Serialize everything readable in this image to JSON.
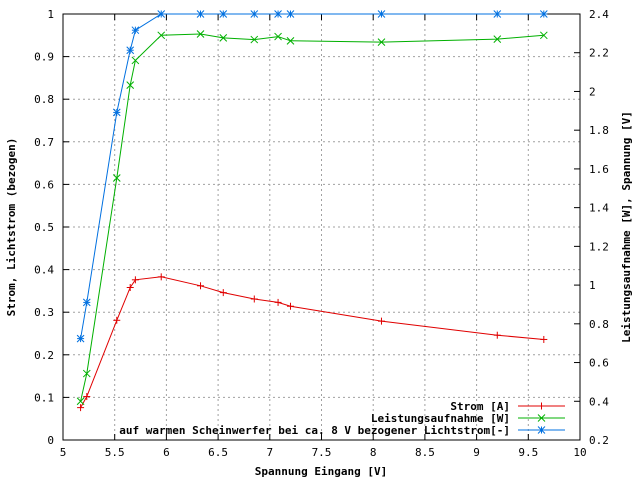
{
  "chart_data": {
    "type": "line",
    "xlabel": "Spannung Eingang [V]",
    "ylabel": "Strom, Lichtstrom (bezogen)",
    "y2label": "Leistungsaufnahme [W], Spannung [V]",
    "xlim": [
      5,
      10
    ],
    "ylim": [
      0,
      1
    ],
    "y2lim": [
      0.2,
      2.4
    ],
    "xticks": [
      5,
      5.5,
      6,
      6.5,
      7,
      7.5,
      8,
      8.5,
      9,
      9.5,
      10
    ],
    "yticks": [
      0,
      0.1,
      0.2,
      0.3,
      0.4,
      0.5,
      0.6,
      0.7,
      0.8,
      0.9,
      1
    ],
    "y2ticks": [
      0.2,
      0.4,
      0.6,
      0.8,
      1,
      1.2,
      1.4,
      1.6,
      1.8,
      2,
      2.2,
      2.4
    ],
    "xtick_labels": [
      "5",
      "5.5",
      "6",
      "6.5",
      "7",
      "7.5",
      "8",
      "8.5",
      "9",
      "9.5",
      "10"
    ],
    "ytick_labels": [
      "0",
      "0.1",
      "0.2",
      "0.3",
      "0.4",
      "0.5",
      "0.6",
      "0.7",
      "0.8",
      "0.9",
      "1"
    ],
    "y2tick_labels": [
      "0.2",
      "0.4",
      "0.6",
      "0.8",
      "1",
      "1.2",
      "1.4",
      "1.6",
      "1.8",
      "2",
      "2.2",
      "2.4"
    ],
    "grid": true,
    "legend_position": "bottom-right",
    "series": [
      {
        "name": "Strom [A]",
        "color": "#e00000",
        "marker": "plus",
        "axis": "left",
        "x": [
          5.17,
          5.23,
          5.52,
          5.65,
          5.7,
          5.95,
          6.33,
          6.55,
          6.85,
          7.08,
          7.2,
          8.08,
          9.2,
          9.65
        ],
        "y": [
          0.076,
          0.102,
          0.281,
          0.358,
          0.376,
          0.383,
          0.362,
          0.346,
          0.331,
          0.323,
          0.314,
          0.279,
          0.246,
          0.236
        ]
      },
      {
        "name": "Leistungsaufnahme [W]",
        "color": "#00b000",
        "marker": "x",
        "axis": "left",
        "x": [
          5.17,
          5.23,
          5.52,
          5.65,
          5.7,
          5.95,
          6.33,
          6.55,
          6.85,
          7.08,
          7.2,
          8.08,
          9.2,
          9.65
        ],
        "y": [
          0.091,
          0.156,
          0.615,
          0.833,
          0.891,
          0.95,
          0.953,
          0.944,
          0.94,
          0.947,
          0.937,
          0.934,
          0.941,
          0.95
        ]
      },
      {
        "name": "auf warmen Scheinwerfer bei ca. 8 V bezogener Lichtstrom[-]",
        "color": "#0070e0",
        "marker": "star",
        "axis": "left",
        "x": [
          5.17,
          5.23,
          5.52,
          5.65,
          5.7,
          5.95,
          6.33,
          6.55,
          6.85,
          7.08,
          7.2,
          8.08,
          9.2,
          9.65
        ],
        "y": [
          0.238,
          0.323,
          0.769,
          0.915,
          0.962,
          1.0,
          1.0,
          1.0,
          1.0,
          1.0,
          1.0,
          1.0,
          1.0,
          1.0
        ]
      }
    ]
  }
}
